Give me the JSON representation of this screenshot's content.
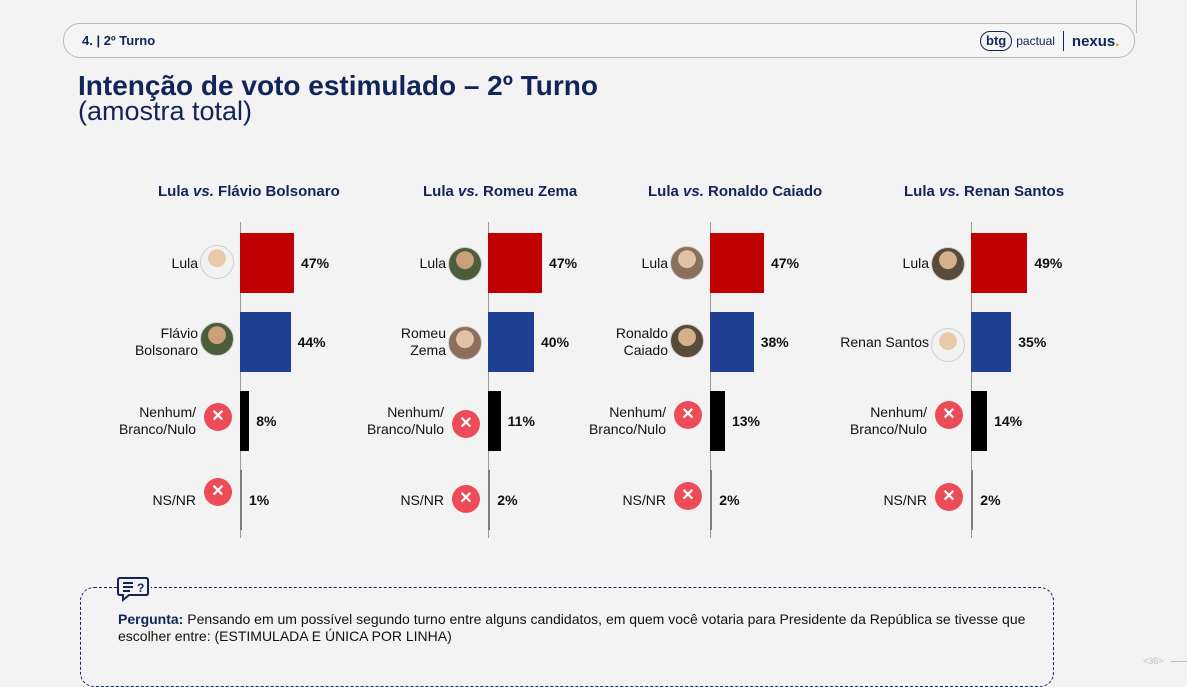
{
  "header": {
    "section": "4. | 2º Turno",
    "logo_btg": "btg",
    "logo_btg_sub": "pactual",
    "logo_nexus": "nexus",
    "logo_nexus_dot": "."
  },
  "title": "Intenção de voto estimulado – 2º Turno",
  "subtitle": "(amostra total)",
  "colors": {
    "lula": "#c00000",
    "opponent": "#1f3f93",
    "nenhum": "#000000",
    "nsnr": "#7f7f7f",
    "title": "#12255a",
    "x_icon": "#ec4b58"
  },
  "chart_data": [
    {
      "type": "bar",
      "orientation": "horizontal",
      "title_a": "Lula",
      "title_vs": "vs.",
      "title_b": "Flávio Bolsonaro",
      "categories": [
        "Lula",
        "Flávio Bolsonaro",
        "Nenhum/ Branco/Nulo",
        "NS/NR"
      ],
      "values": [
        47,
        44,
        8,
        1
      ],
      "value_labels": [
        "47%",
        "44%",
        "8%",
        "1%"
      ],
      "label_lines": [
        [
          "Lula"
        ],
        [
          "Flávio",
          "Bolsonaro"
        ],
        [
          "Nenhum/",
          "Branco/Nulo"
        ],
        [
          "NS/NR"
        ]
      ]
    },
    {
      "type": "bar",
      "orientation": "horizontal",
      "title_a": "Lula",
      "title_vs": "vs.",
      "title_b": "Romeu Zema",
      "categories": [
        "Lula",
        "Romeu Zema",
        "Nenhum/ Branco/Nulo",
        "NS/NR"
      ],
      "values": [
        47,
        40,
        11,
        2
      ],
      "value_labels": [
        "47%",
        "40%",
        "11%",
        "2%"
      ],
      "label_lines": [
        [
          "Lula"
        ],
        [
          "Romeu",
          "Zema"
        ],
        [
          "Nenhum/",
          "Branco/Nulo"
        ],
        [
          "NS/NR"
        ]
      ]
    },
    {
      "type": "bar",
      "orientation": "horizontal",
      "title_a": "Lula",
      "title_vs": "vs.",
      "title_b": "Ronaldo Caiado",
      "categories": [
        "Lula",
        "Ronaldo Caiado",
        "Nenhum/ Branco/Nulo",
        "NS/NR"
      ],
      "values": [
        47,
        38,
        13,
        2
      ],
      "value_labels": [
        "47%",
        "38%",
        "13%",
        "2%"
      ],
      "label_lines": [
        [
          "Lula"
        ],
        [
          "Ronaldo",
          "Caiado"
        ],
        [
          "Nenhum/",
          "Branco/Nulo"
        ],
        [
          "NS/NR"
        ]
      ]
    },
    {
      "type": "bar",
      "orientation": "horizontal",
      "title_a": "Lula",
      "title_vs": "vs.",
      "title_b": "Renan Santos",
      "categories": [
        "Lula",
        "Renan Santos",
        "Nenhum/ Branco/Nulo",
        "NS/NR"
      ],
      "values": [
        49,
        35,
        14,
        2
      ],
      "value_labels": [
        "49%",
        "35%",
        "14%",
        "2%"
      ],
      "label_lines": [
        [
          "Lula"
        ],
        [
          "Renan Santos"
        ],
        [
          "Nenhum/",
          "Branco/Nulo"
        ],
        [
          "NS/NR"
        ]
      ]
    }
  ],
  "icons": {
    "candidate": "candidate-photo-icon",
    "none": "x-circle-icon",
    "question": "question-chat-icon"
  },
  "question": {
    "label": "Pergunta:",
    "text": " Pensando em um possível segundo turno entre alguns candidatos, em quem você votaria para Presidente da República se tivesse que escolher entre: (ESTIMULADA E ÚNICA POR LINHA)"
  },
  "page_number": "<36>",
  "x_glyph": "✕"
}
